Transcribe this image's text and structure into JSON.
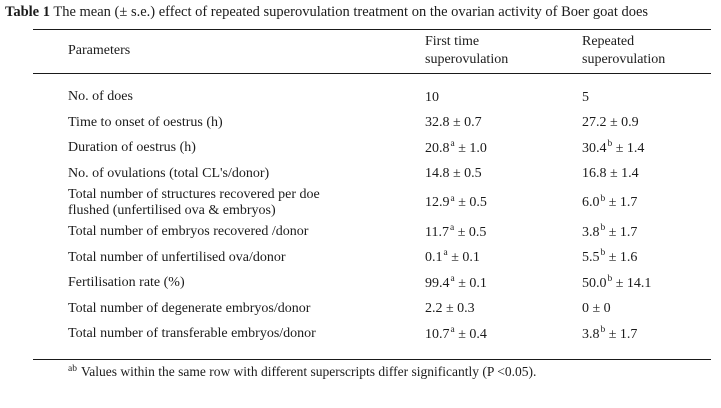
{
  "caption": {
    "label": "Table 1",
    "text": " The mean (± s.e.) effect of repeated superovulation treatment on the ovarian activity of Boer goat does"
  },
  "table": {
    "headers": {
      "parameters": "Parameters",
      "first": "First time\nsuperovulation",
      "repeated": "Repeated\nsuperovulation"
    },
    "rows": [
      {
        "parameter": "No. of does",
        "first": {
          "mean": "10",
          "sup": "",
          "err": ""
        },
        "repeated": {
          "mean": "5",
          "sup": "",
          "err": ""
        }
      },
      {
        "parameter": "Time to onset of oestrus (h)",
        "first": {
          "mean": "32.8",
          "sup": "",
          "err": "0.7"
        },
        "repeated": {
          "mean": "27.2",
          "sup": "",
          "err": "0.9"
        }
      },
      {
        "parameter": "Duration of oestrus (h)",
        "first": {
          "mean": "20.8",
          "sup": "a",
          "err": "1.0"
        },
        "repeated": {
          "mean": "30.4",
          "sup": "b",
          "err": "1.4"
        }
      },
      {
        "parameter": "No. of ovulations (total CL's/donor)",
        "first": {
          "mean": "14.8",
          "sup": "",
          "err": "0.5"
        },
        "repeated": {
          "mean": "16.8",
          "sup": "",
          "err": "1.4"
        }
      },
      {
        "parameter": "Total number of structures recovered per doe flushed (unfertilised ova & embryos)",
        "first": {
          "mean": "12.9",
          "sup": "a",
          "err": "0.5"
        },
        "repeated": {
          "mean": "6.0",
          "sup": "b",
          "err": "1.7"
        }
      },
      {
        "parameter": "Total number of embryos recovered /donor",
        "first": {
          "mean": "11.7",
          "sup": "a",
          "err": "0.5"
        },
        "repeated": {
          "mean": "3.8",
          "sup": "b",
          "err": "1.7"
        }
      },
      {
        "parameter": "Total number of unfertilised ova/donor",
        "first": {
          "mean": "0.1",
          "sup": "a",
          "err": "0.1"
        },
        "repeated": {
          "mean": "5.5",
          "sup": "b",
          "err": "1.6"
        }
      },
      {
        "parameter": "Fertilisation rate (%)",
        "first": {
          "mean": "99.4",
          "sup": "a",
          "err": "0.1"
        },
        "repeated": {
          "mean": "50.0",
          "sup": "b",
          "err": "14.1"
        }
      },
      {
        "parameter": "Total number of degenerate embryos/donor",
        "first": {
          "mean": "2.2",
          "sup": "",
          "err": "0.3"
        },
        "repeated": {
          "mean": "0",
          "sup": "",
          "err": "0"
        }
      },
      {
        "parameter": "Total number of transferable embryos/donor",
        "first": {
          "mean": "10.7",
          "sup": "a",
          "err": "0.4"
        },
        "repeated": {
          "mean": "3.8",
          "sup": "b",
          "err": "1.7"
        }
      }
    ]
  },
  "footnote": {
    "sup": "ab",
    "text": "Values within the same row with different superscripts differ significantly (P <0.05)."
  },
  "colors": {
    "text": "#1b1b1b",
    "rule": "#1a1a1a",
    "background": "#ffffff"
  }
}
